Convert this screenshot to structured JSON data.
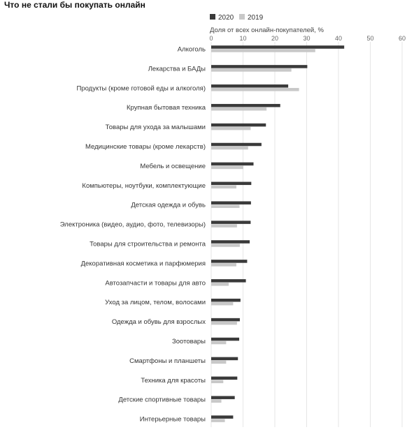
{
  "chart_data": {
    "type": "bar",
    "orientation": "horizontal",
    "title": "Что не стали бы покупать онлайн",
    "xlabel": "Доля от всех онлайн-покупателей, %",
    "ylabel": "",
    "xlim": [
      0,
      60
    ],
    "xticks": [
      0,
      10,
      20,
      30,
      40,
      50,
      60
    ],
    "grid": true,
    "legend_position": "top",
    "categories": [
      "Алкоголь",
      "Лекарства и БАДы",
      "Продукты (кроме готовой еды и алкоголя)",
      "Крупная бытовая техника",
      "Товары для ухода за малышами",
      "Медицинские товары (кроме лекарств)",
      "Мебель и освещение",
      "Компьютеры, ноутбуки, комплектующие",
      "Детская одежда и обувь",
      "Электроника (видео, аудио, фото, телевизоры)",
      "Товары для строительства и ремонта",
      "Декоративная косметика и парфюмерия",
      "Автозапчасти и товары для авто",
      "Уход за лицом, телом, волосами",
      "Одежда и обувь для взрослых",
      "Зоотовары",
      "Смартфоны и планшеты",
      "Техника для красоты",
      "Детские спортивные товары",
      "Интерьерные товары"
    ],
    "series": [
      {
        "name": "2020",
        "color": "#3a3a3a",
        "values": [
          41.8,
          30.2,
          24.2,
          21.7,
          17.2,
          15.8,
          13.3,
          12.6,
          12.5,
          12.4,
          12.1,
          11.3,
          10.9,
          9.2,
          9.0,
          8.8,
          8.4,
          8.2,
          7.4,
          6.9
        ]
      },
      {
        "name": "2019",
        "color": "#c8c8c8",
        "values": [
          32.7,
          25.2,
          27.6,
          17.4,
          12.4,
          11.6,
          10.1,
          7.9,
          8.9,
          8.1,
          9.0,
          7.9,
          5.5,
          6.9,
          8.1,
          4.7,
          4.7,
          3.8,
          3.2,
          4.3
        ]
      }
    ]
  }
}
